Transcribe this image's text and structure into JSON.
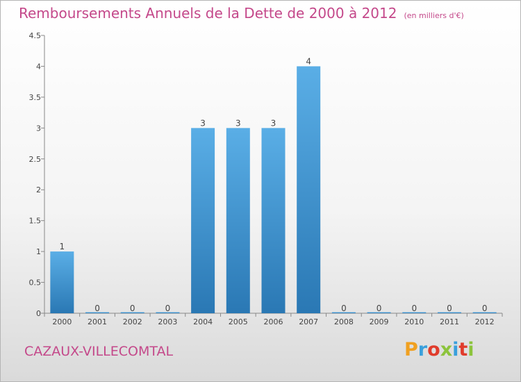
{
  "header": {
    "title": "Remboursements Annuels de la Dette de 2000 à 2012",
    "unit": "(en milliers d'€)"
  },
  "footer": {
    "commune": "CAZAUX-VILLECOMTAL",
    "brand": "Proxiti",
    "brand_colors": [
      "#f0a020",
      "#3aa0dc",
      "#e03c2c",
      "#8cc43c",
      "#3aa0dc",
      "#e03c2c",
      "#8cc43c"
    ]
  },
  "chart_data": {
    "type": "bar",
    "title": "Remboursements Annuels de la Dette de 2000 à 2012",
    "subtitle": "(en milliers d'€)",
    "xlabel": "",
    "ylabel": "",
    "categories": [
      "2000",
      "2001",
      "2002",
      "2003",
      "2004",
      "2005",
      "2006",
      "2007",
      "2008",
      "2009",
      "2010",
      "2011",
      "2012"
    ],
    "values": [
      1,
      0,
      0,
      0,
      3,
      3,
      3,
      4,
      0,
      0,
      0,
      0,
      0
    ],
    "data_labels": [
      "1",
      "0",
      "0",
      "0",
      "3",
      "3",
      "3",
      "4",
      "0",
      "0",
      "0",
      "0",
      "0"
    ],
    "ylim": [
      0,
      4.5
    ],
    "yticks": [
      0,
      0.5,
      1,
      1.5,
      2,
      2.5,
      3,
      3.5,
      4,
      4.5
    ],
    "ytick_labels": [
      "0",
      "0.5",
      "1",
      "1.5",
      "2",
      "2.5",
      "3",
      "3.5",
      "4",
      "4.5"
    ],
    "grid": false,
    "colors": {
      "bar_top": "#5aaee6",
      "bar_bottom": "#2a78b4",
      "axis": "#888888",
      "text": "#444444"
    }
  }
}
